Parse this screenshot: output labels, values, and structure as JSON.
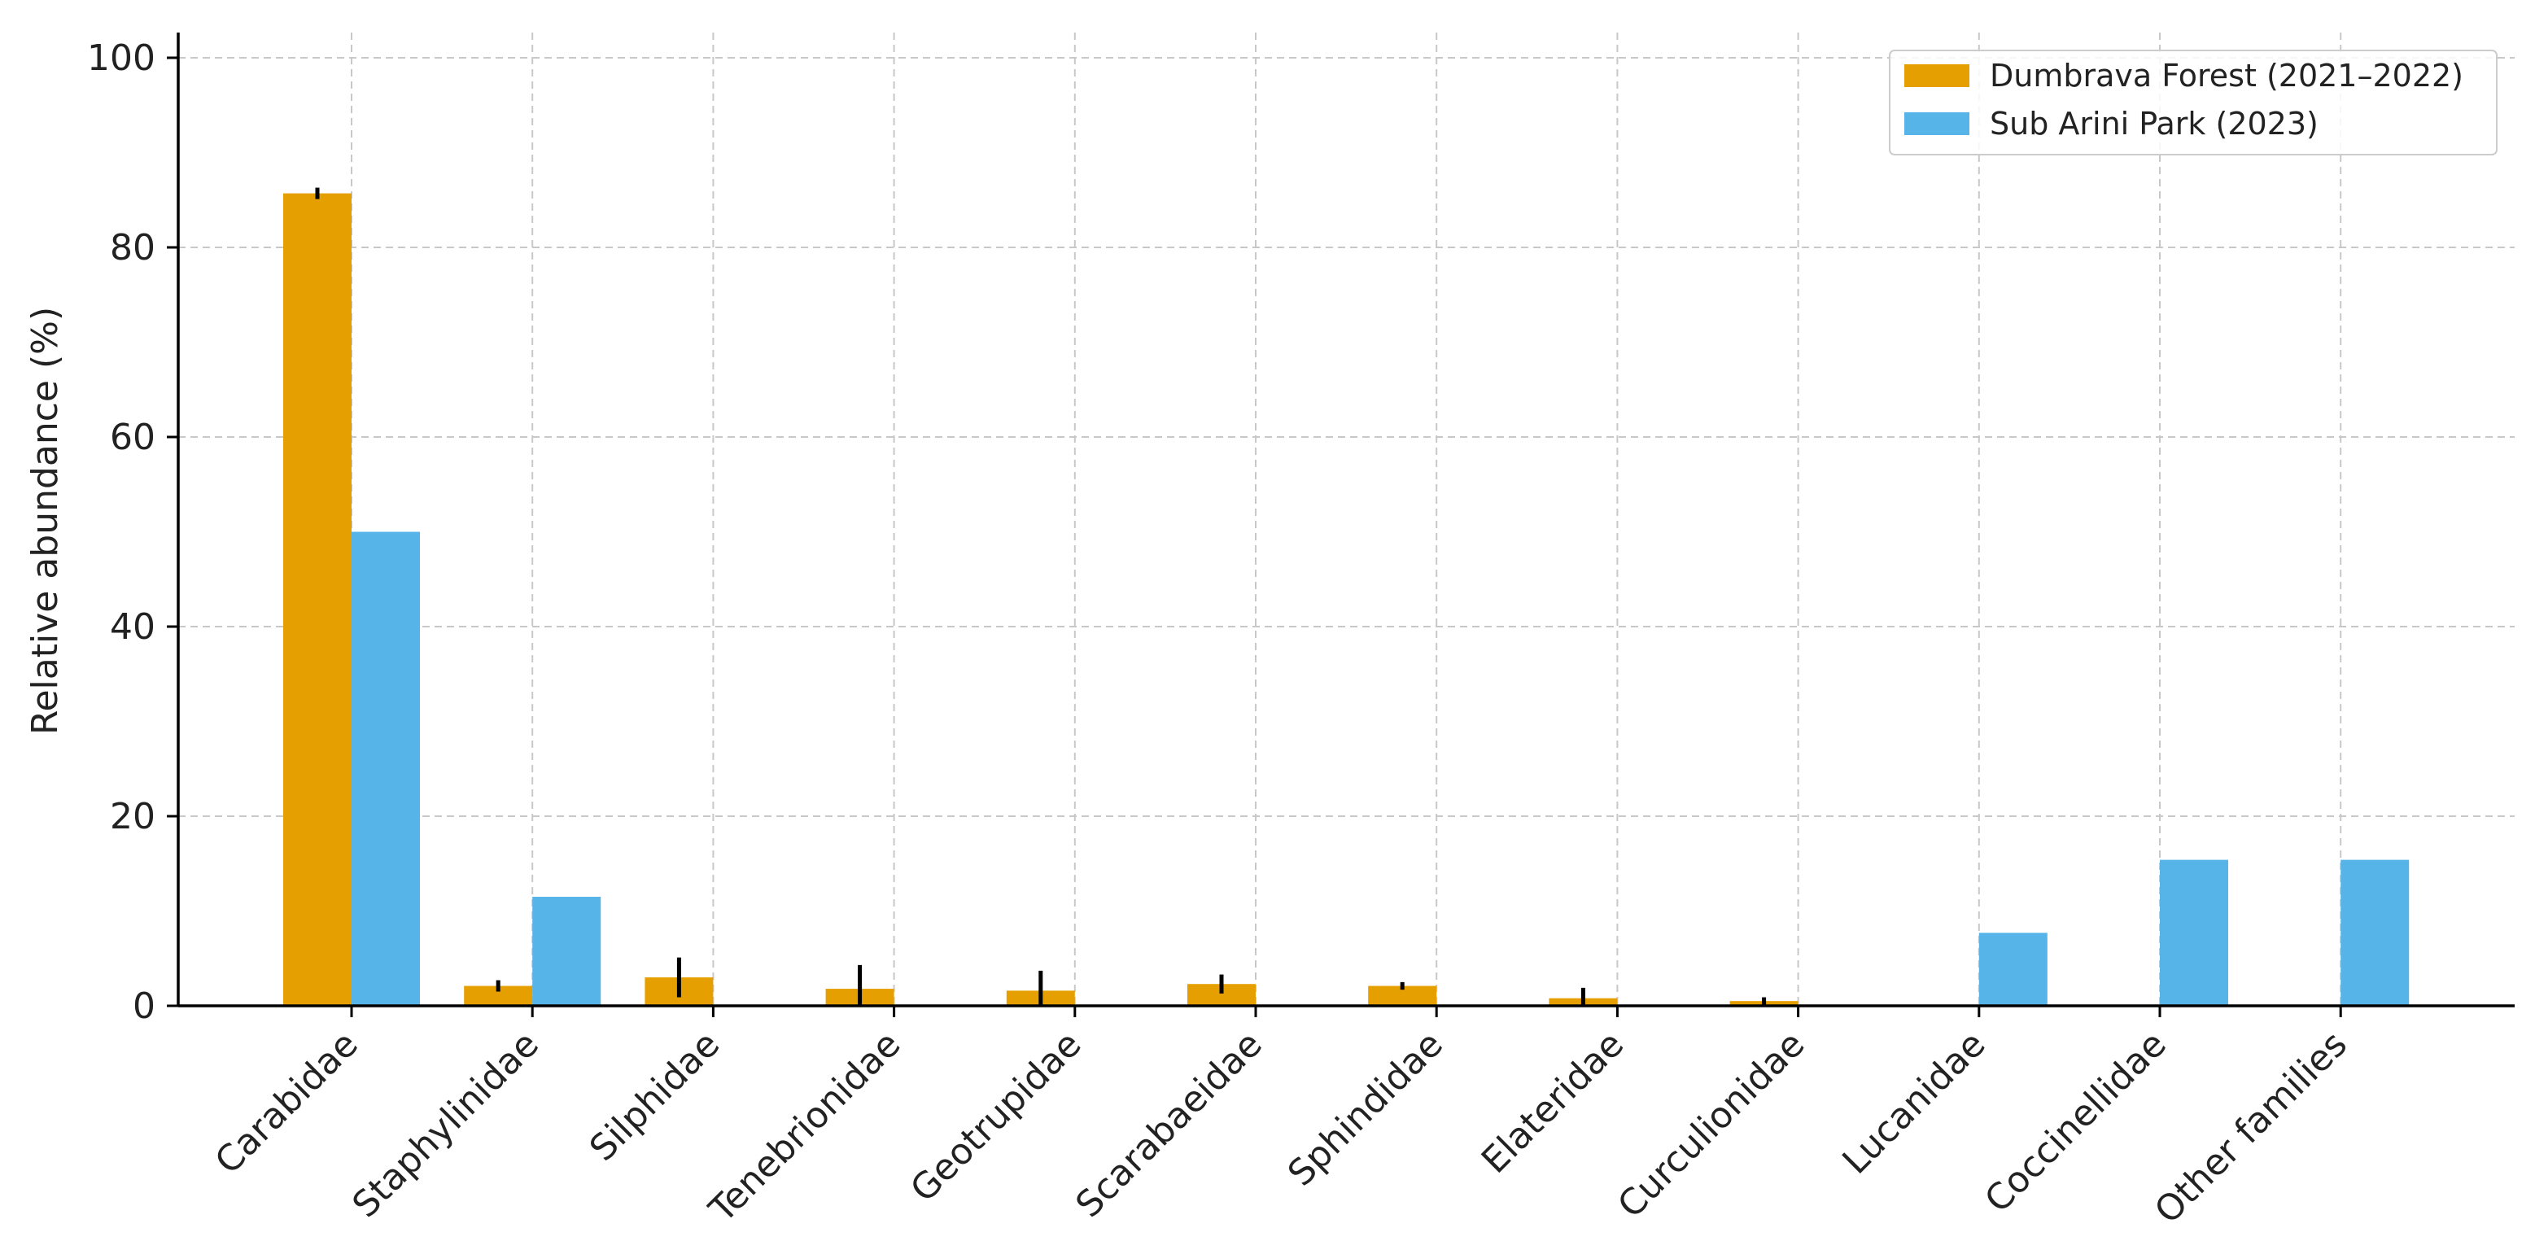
{
  "chart_data": {
    "type": "bar",
    "title": "",
    "xlabel": "",
    "ylabel": "Relative abundance (%)",
    "ylim": [
      0,
      100
    ],
    "yticks": [
      0,
      20,
      40,
      60,
      80,
      100
    ],
    "grid": true,
    "legend_position": "top-right",
    "categories": [
      "Carabidae",
      "Staphylinidae",
      "Silphidae",
      "Tenebrionidae",
      "Geotrupidae",
      "Scarabaeidae",
      "Sphindidae",
      "Elateridae",
      "Curculionidae",
      "Lucanidae",
      "Coccinellidae",
      "Other families"
    ],
    "series": [
      {
        "name": "Dumbrava Forest (2021–2022)",
        "color": "#E69F00",
        "values": [
          85.7,
          2.1,
          3.0,
          1.8,
          1.6,
          2.3,
          2.1,
          0.8,
          0.5,
          0,
          0,
          0
        ],
        "error": [
          0.6,
          0.6,
          2.1,
          2.5,
          2.1,
          1.0,
          0.4,
          1.1,
          0.4,
          0,
          0,
          0
        ]
      },
      {
        "name": "Sub Arini Park (2023)",
        "color": "#56B4E9",
        "values": [
          50.0,
          11.5,
          0,
          0,
          0,
          0,
          0,
          0,
          0,
          7.7,
          15.4,
          15.4
        ],
        "error": null
      }
    ]
  }
}
